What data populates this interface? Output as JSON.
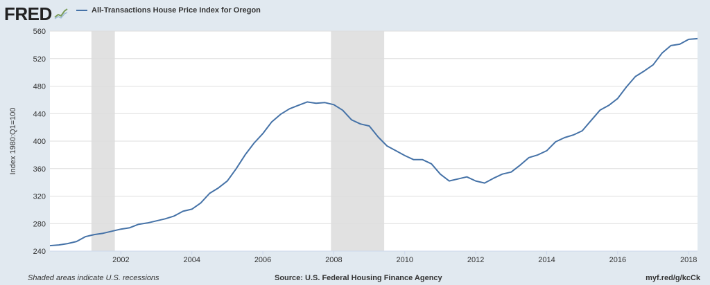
{
  "header": {
    "logo_text": "FRED",
    "logo_icon": "chart-line-icon",
    "series_title": "All-Transactions House Price Index for Oregon",
    "series_color": "#4572a7"
  },
  "footer": {
    "note": "Shaded areas indicate U.S. recessions",
    "source": "Source: U.S. Federal Housing Finance Agency",
    "link": "myf.red/g/kcCk"
  },
  "colors": {
    "background": "#e1e9f0",
    "plot_background": "#ffffff",
    "line": "#4572a7",
    "recession": "#e1e1e1",
    "grid": "#dddddd"
  },
  "chart_data": {
    "type": "line",
    "title": "All-Transactions House Price Index for Oregon",
    "xlabel": "",
    "ylabel": "Index 1980:Q1=100",
    "xlim": [
      2000.0,
      2018.25
    ],
    "ylim": [
      240,
      560
    ],
    "grid": true,
    "yticks": [
      240,
      280,
      320,
      360,
      400,
      440,
      480,
      520,
      560
    ],
    "xticks": [
      2002,
      2004,
      2006,
      2008,
      2010,
      2012,
      2014,
      2016,
      2018
    ],
    "recessions": [
      [
        2001.17,
        2001.83
      ],
      [
        2007.92,
        2009.42
      ]
    ],
    "series": [
      {
        "name": "All-Transactions House Price Index for Oregon",
        "x": [
          2000.0,
          2000.25,
          2000.5,
          2000.75,
          2001.0,
          2001.25,
          2001.5,
          2001.75,
          2002.0,
          2002.25,
          2002.5,
          2002.75,
          2003.0,
          2003.25,
          2003.5,
          2003.75,
          2004.0,
          2004.25,
          2004.5,
          2004.75,
          2005.0,
          2005.25,
          2005.5,
          2005.75,
          2006.0,
          2006.25,
          2006.5,
          2006.75,
          2007.0,
          2007.25,
          2007.5,
          2007.75,
          2008.0,
          2008.25,
          2008.5,
          2008.75,
          2009.0,
          2009.25,
          2009.5,
          2009.75,
          2010.0,
          2010.25,
          2010.5,
          2010.75,
          2011.0,
          2011.25,
          2011.5,
          2011.75,
          2012.0,
          2012.25,
          2012.5,
          2012.75,
          2013.0,
          2013.25,
          2013.5,
          2013.75,
          2014.0,
          2014.25,
          2014.5,
          2014.75,
          2015.0,
          2015.25,
          2015.5,
          2015.75,
          2016.0,
          2016.25,
          2016.5,
          2016.75,
          2017.0,
          2017.25,
          2017.5,
          2017.75,
          2018.0,
          2018.25
        ],
        "values": [
          248,
          249,
          251,
          254,
          261,
          264,
          266,
          269,
          272,
          274,
          279,
          281,
          284,
          287,
          291,
          298,
          301,
          310,
          324,
          332,
          342,
          360,
          380,
          397,
          411,
          428,
          439,
          447,
          452,
          457,
          455,
          456,
          453,
          445,
          431,
          425,
          422,
          406,
          393,
          386,
          379,
          373,
          373,
          367,
          352,
          342,
          345,
          348,
          342,
          339,
          346,
          352,
          355,
          365,
          376,
          380,
          386,
          399,
          405,
          409,
          415,
          430,
          445,
          452,
          462,
          479,
          494,
          502,
          511,
          528,
          539,
          541,
          548,
          549
        ]
      }
    ]
  }
}
